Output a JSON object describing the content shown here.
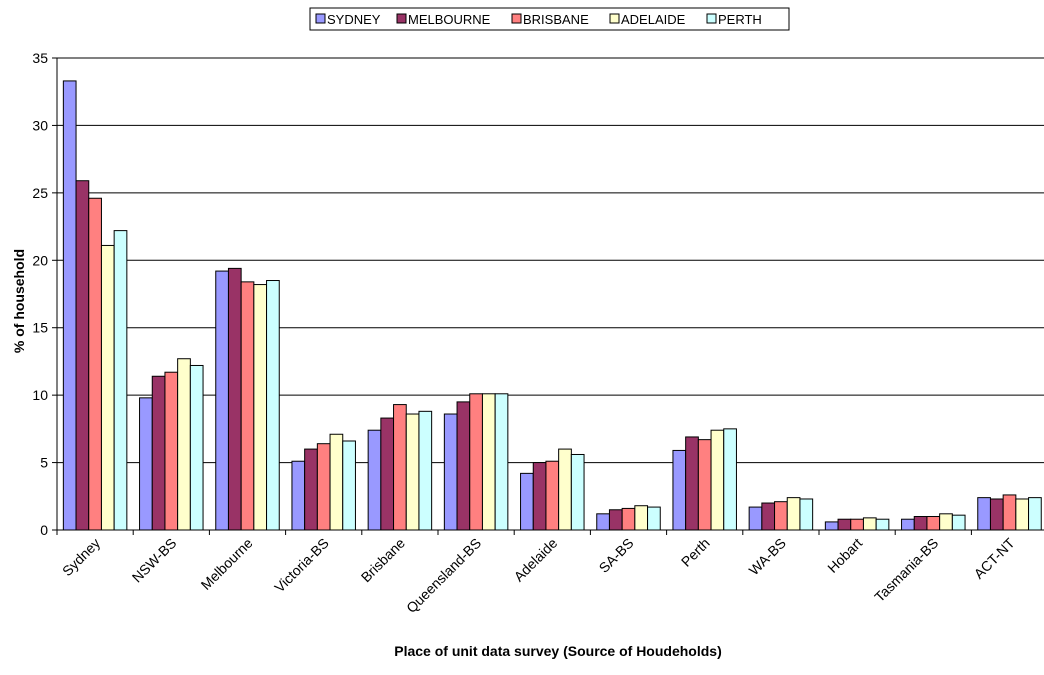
{
  "chart_data": {
    "type": "bar",
    "title": "",
    "xlabel": "Place of unit data survey (Source of Houdeholds)",
    "ylabel": "% of household",
    "ylim": [
      0,
      35
    ],
    "yticks": [
      0,
      5,
      10,
      15,
      20,
      25,
      30,
      35
    ],
    "grid": true,
    "legend_position": "top-center",
    "categories": [
      "Sydney",
      "NSW-BS",
      "Melbourne",
      "Victoria-BS",
      "Brisbane",
      "Queensland-BS",
      "Adelaide",
      "SA-BS",
      "Perth",
      "WA-BS",
      "Hobart",
      "Tasmania-BS",
      "ACT-NT"
    ],
    "series": [
      {
        "name": "SYDNEY",
        "color": "#9999ff",
        "values": [
          33.3,
          9.8,
          19.2,
          5.1,
          7.4,
          8.6,
          4.2,
          1.2,
          5.9,
          1.7,
          0.6,
          0.8,
          2.4
        ]
      },
      {
        "name": "MELBOURNE",
        "color": "#993366",
        "values": [
          25.9,
          11.4,
          19.4,
          6.0,
          8.3,
          9.5,
          5.0,
          1.5,
          6.9,
          2.0,
          0.8,
          1.0,
          2.3
        ]
      },
      {
        "name": "BRISBANE",
        "color": "#ff8080",
        "values": [
          24.6,
          11.7,
          18.4,
          6.4,
          9.3,
          10.1,
          5.1,
          1.6,
          6.7,
          2.1,
          0.8,
          1.0,
          2.6
        ]
      },
      {
        "name": "ADELAIDE",
        "color": "#ffffcc",
        "values": [
          21.1,
          12.7,
          18.2,
          7.1,
          8.6,
          10.1,
          6.0,
          1.8,
          7.4,
          2.4,
          0.9,
          1.2,
          2.3
        ]
      },
      {
        "name": "PERTH",
        "color": "#ccffff",
        "values": [
          22.2,
          12.2,
          18.5,
          6.6,
          8.8,
          10.1,
          5.6,
          1.7,
          7.5,
          2.3,
          0.8,
          1.1,
          2.4
        ]
      }
    ]
  }
}
